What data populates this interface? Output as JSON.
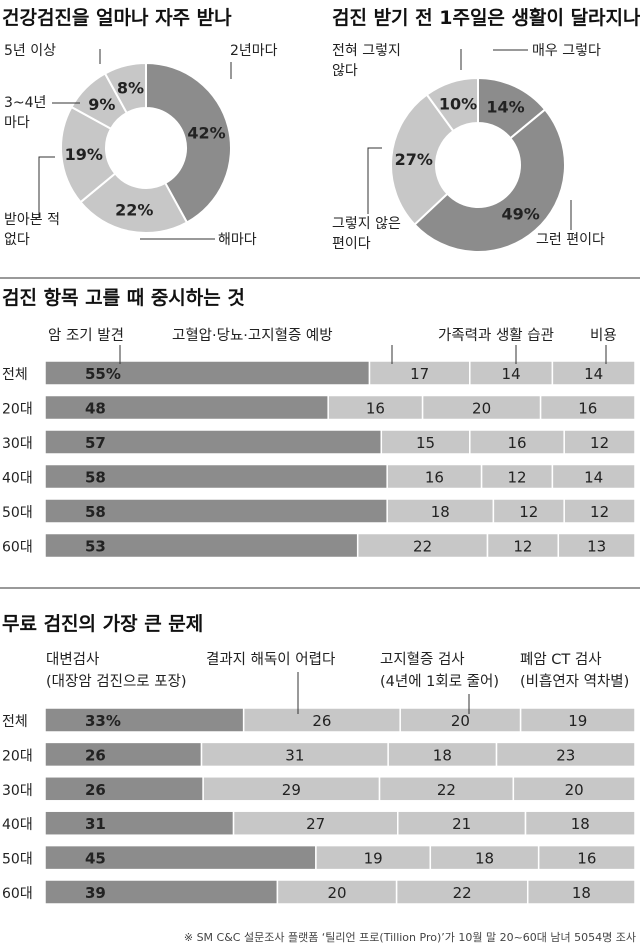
{
  "chart_data": [
    {
      "type": "pie",
      "title": "건강검진을 얼마나 자주 받나",
      "slices": [
        {
          "label": "2년마다",
          "value": 42,
          "color": "#8c8c8c"
        },
        {
          "label": "해마다",
          "value": 22,
          "color": "#c7c7c7"
        },
        {
          "label": "받아본 적\n없다",
          "value": 19,
          "color": "#c7c7c7"
        },
        {
          "label": "3~4년\n마다",
          "value": 9,
          "color": "#c7c7c7"
        },
        {
          "label": "5년 이상",
          "value": 8,
          "color": "#c7c7c7"
        }
      ]
    },
    {
      "type": "pie",
      "title": "검진 받기 전 1주일은 생활이 달라지나",
      "slices": [
        {
          "label": "매우 그렇다",
          "value": 14,
          "color": "#8c8c8c"
        },
        {
          "label": "그런 편이다",
          "value": 49,
          "color": "#8c8c8c"
        },
        {
          "label": "그렇지 않은\n편이다",
          "value": 27,
          "color": "#c7c7c7"
        },
        {
          "label": "전혀 그렇지\n않다",
          "value": 10,
          "color": "#c7c7c7"
        }
      ]
    },
    {
      "type": "bar",
      "stacked": true,
      "orientation": "horizontal",
      "title": "검진 항목 고를 때 중시하는 것",
      "categories": [
        "전체",
        "20대",
        "30대",
        "40대",
        "50대",
        "60대"
      ],
      "series": [
        {
          "name": "암 조기 발견",
          "values": [
            55,
            48,
            57,
            58,
            58,
            53
          ],
          "color": "#8c8c8c"
        },
        {
          "name": "고혈압·당뇨·고지혈증 예방",
          "values": [
            17,
            16,
            15,
            16,
            18,
            22
          ],
          "color": "#c7c7c7"
        },
        {
          "name": "가족력과 생활 습관",
          "values": [
            14,
            20,
            16,
            12,
            12,
            12
          ],
          "color": "#c7c7c7"
        },
        {
          "name": "비용",
          "values": [
            14,
            16,
            12,
            14,
            12,
            13
          ],
          "color": "#c7c7c7"
        }
      ],
      "first_label_suffix": "%"
    },
    {
      "type": "bar",
      "stacked": true,
      "orientation": "horizontal",
      "title": "무료 검진의 가장 큰 문제",
      "categories": [
        "전체",
        "20대",
        "30대",
        "40대",
        "50대",
        "60대"
      ],
      "series": [
        {
          "name": "대변검사\n(대장암 검진으로 포장)",
          "values": [
            33,
            26,
            26,
            31,
            45,
            39
          ],
          "color": "#8c8c8c"
        },
        {
          "name": "결과지 해독이 어렵다",
          "values": [
            26,
            31,
            29,
            27,
            19,
            20
          ],
          "color": "#c7c7c7"
        },
        {
          "name": "고지혈증 검사\n(4년에 1회로 줄어)",
          "values": [
            20,
            18,
            22,
            21,
            18,
            22
          ],
          "color": "#c7c7c7"
        },
        {
          "name": "폐암 CT 검사\n(비흡연자 역차별)",
          "values": [
            19,
            23,
            20,
            18,
            16,
            18
          ],
          "color": "#c7c7c7"
        }
      ],
      "first_label_suffix": "%"
    }
  ],
  "footnote": "※ SM C&C 설문조사 플랫폼 ‘틸리언 프로(Tillion Pro)’가 10월 말 20~60대 남녀 5054명 조사"
}
